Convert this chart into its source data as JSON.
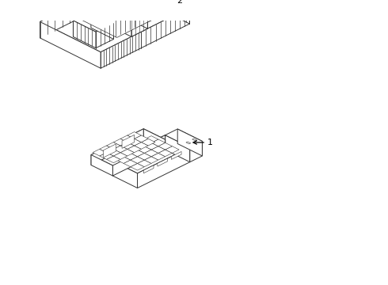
{
  "background_color": "#ffffff",
  "line_color": "#333333",
  "line_width": 0.7,
  "label_color": "#000000",
  "label_fontsize": 8,
  "fig_width": 4.9,
  "fig_height": 3.6,
  "dpi": 100
}
